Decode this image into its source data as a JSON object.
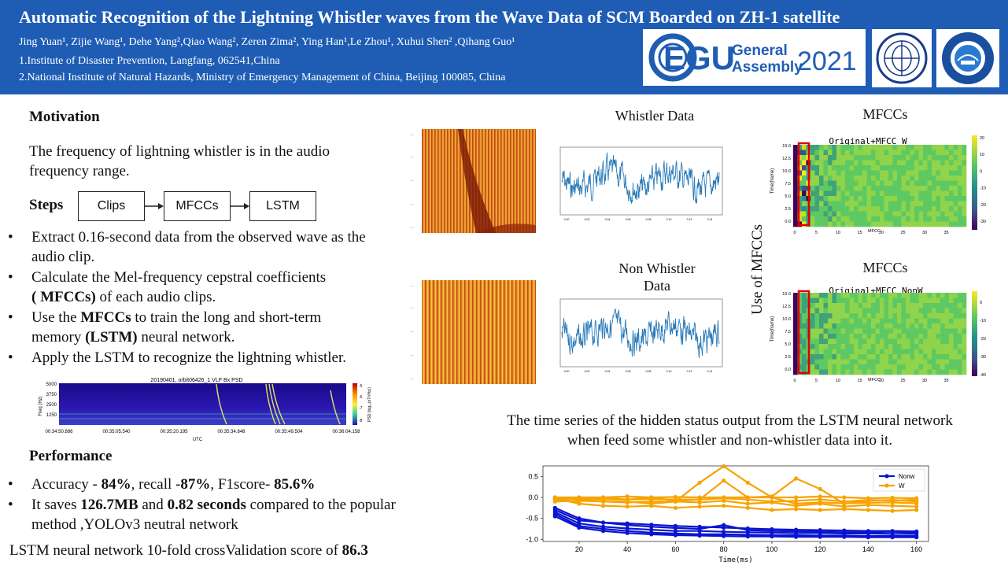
{
  "header": {
    "title": "Automatic Recognition of the Lightning Whistler waves from the Wave Data of SCM Boarded on ZH-1 satellite",
    "authors": "Jing Yuan¹, Zijie Wang¹, Dehe Yang²,Qiao Wang², Zeren Zima², Ying Han¹,Le Zhou¹, Xuhui Shen² ,Qihang Guo¹",
    "affiliation1": "1.Institute of Disaster Prevention, Langfang, 062541,China",
    "affiliation2": "2.National Institute of Natural Hazards, Ministry of Emergency Management of China, Beijing 100085, China",
    "egu_mark": "EGU",
    "egu_general": "General",
    "egu_assembly": "Assembly",
    "egu_year": "2021"
  },
  "motivation": {
    "heading": "Motivation",
    "text_line1": "The frequency of lightning whistler is in the audio",
    "text_line2": "frequency range."
  },
  "steps": {
    "heading": "Steps",
    "flow": [
      "Clips",
      "MFCCs",
      "LSTM"
    ],
    "bullets": [
      {
        "l1": "Extract 0.16-second data from the observed wave as the",
        "l2": "audio clip."
      },
      {
        "l1": "Calculate the Mel-frequency cepstral coefficients",
        "l2b": "( MFCCs)",
        "l2": " of each audio clips."
      },
      {
        "l1a": "Use the ",
        "l1b": "MFCCs",
        "l1c": " to train the long and short-term",
        "l2a": "memory ",
        "l2b": "(LSTM)",
        "l2c": " neural network."
      },
      {
        "l1": "Apply the LSTM to recognize the lightning whistler."
      }
    ]
  },
  "spectrogram": {
    "title": "20190401, orbit06426_1 VLF Bx PSD",
    "ylabel": "Freq (Hz)",
    "yticks": [
      "5000",
      "3750",
      "2500",
      "1250"
    ],
    "xlabel": "UTC",
    "xticks": [
      "00:34:50.886",
      "00:35:05.540",
      "00:35:20.195",
      "00:35:34.848",
      "00:35:49.504",
      "00:36:04.158"
    ],
    "cbar_label": "PSD (log₁₀(nT²/Hz))",
    "cbar_ticks": [
      "-5",
      "-6",
      "-7",
      "-8"
    ]
  },
  "performance": {
    "heading": "Performance",
    "b1_a": "Accuracy - ",
    "b1_b": "84%",
    "b1_c": ", recall -",
    "b1_d": "87%",
    "b1_e": ", F1score- ",
    "b1_f": "85.6%",
    "b2_a": "It saves ",
    "b2_b": "126.7MB",
    "b2_c": " and ",
    "b2_d": "0.82 seconds",
    "b2_e": " compared to the popular",
    "b2_l2": "method ,YOLOv3 neutral network",
    "cv_a": "LSTM  neural network 10-fold crossValidation score of ",
    "cv_b": "86.3"
  },
  "right": {
    "whistler_label": "Whistler Data",
    "mfcc_label1": "MFCCs",
    "nonwhistler_label_l1": "Non Whistler",
    "nonwhistler_label_l2": "Data",
    "mfcc_label2": "MFCCs",
    "use_of_mfccs": "Use of MFCCs",
    "heat1_title": "Original+MFCC_W",
    "heat2_title": "Original+MFCC_NonW",
    "heat_ylabel": "Time(frame)",
    "heat_xlabel": "MFCC",
    "heat_yticks": [
      "15.0",
      "12.5",
      "10.0",
      "7.5",
      "5.0",
      "2.5",
      "0.0"
    ],
    "heat_xticks": [
      "0",
      "5",
      "10",
      "15",
      "20",
      "25",
      "30",
      "35"
    ],
    "cb1_ticks": [
      "20",
      "10",
      "0",
      "-10",
      "-20",
      "-30"
    ],
    "cb2_ticks": [
      "0",
      "-10",
      "-20",
      "-30",
      "-40"
    ],
    "wave_xticks": [
      "0.00",
      "0.02",
      "0.04",
      "0.06",
      "0.08",
      "0.10",
      "0.12",
      "0.14"
    ],
    "caption_l1": "The time series  of the hidden status  output from the LSTM  neural network",
    "caption_l2": "when feed some whistler and non-whistler data into it."
  },
  "chart_data": {
    "type": "line",
    "xlabel": "Time(ms)",
    "ylabel": "",
    "x": [
      10,
      20,
      30,
      40,
      50,
      60,
      70,
      80,
      90,
      100,
      110,
      120,
      130,
      140,
      150,
      160
    ],
    "xticks": [
      20,
      40,
      60,
      80,
      100,
      120,
      140,
      160
    ],
    "yticks": [
      0.5,
      0.0,
      -0.5,
      -1.0
    ],
    "ylim": [
      -1.05,
      0.75
    ],
    "xlim": [
      5,
      165
    ],
    "legend": "top-right",
    "colors": {
      "Nonw": "#0a14d0",
      "W": "#f7a300"
    },
    "series": [
      {
        "name": "Nonw",
        "values": [
          -0.3,
          -0.55,
          -0.6,
          -0.62,
          -0.65,
          -0.68,
          -0.7,
          -0.72,
          -0.74,
          -0.76,
          -0.77,
          -0.78,
          -0.79,
          -0.8,
          -0.8,
          -0.81
        ]
      },
      {
        "name": "Nonw",
        "values": [
          -0.35,
          -0.62,
          -0.7,
          -0.74,
          -0.77,
          -0.8,
          -0.8,
          -0.82,
          -0.83,
          -0.84,
          -0.85,
          -0.85,
          -0.86,
          -0.86,
          -0.87,
          -0.87
        ]
      },
      {
        "name": "Nonw",
        "values": [
          -0.4,
          -0.68,
          -0.75,
          -0.8,
          -0.84,
          -0.86,
          -0.88,
          -0.88,
          -0.89,
          -0.9,
          -0.9,
          -0.91,
          -0.91,
          -0.92,
          -0.92,
          -0.92
        ]
      },
      {
        "name": "Nonw",
        "values": [
          -0.45,
          -0.72,
          -0.8,
          -0.85,
          -0.88,
          -0.9,
          -0.91,
          -0.92,
          -0.93,
          -0.93,
          -0.94,
          -0.94,
          -0.94,
          -0.95,
          -0.95,
          -0.95
        ]
      },
      {
        "name": "Nonw",
        "values": [
          -0.25,
          -0.5,
          -0.6,
          -0.66,
          -0.7,
          -0.73,
          -0.75,
          -0.66,
          -0.78,
          -0.8,
          -0.81,
          -0.82,
          -0.83,
          -0.83,
          -0.82,
          -0.84
        ]
      },
      {
        "name": "W",
        "values": [
          0.0,
          0.0,
          0.0,
          0.02,
          0.0,
          0.01,
          0.0,
          0.0,
          0.0,
          0.0,
          0.0,
          0.02,
          0.0,
          -0.02,
          -0.01,
          -0.02
        ]
      },
      {
        "name": "W",
        "values": [
          -0.05,
          -0.02,
          -0.05,
          -0.05,
          -0.04,
          -0.05,
          -0.05,
          0.4,
          0.0,
          0.02,
          0.45,
          0.2,
          -0.15,
          -0.08,
          -0.06,
          -0.1
        ]
      },
      {
        "name": "W",
        "values": [
          -0.1,
          -0.08,
          -0.1,
          -0.12,
          -0.1,
          -0.1,
          0.35,
          0.74,
          0.35,
          0.0,
          -0.15,
          -0.12,
          -0.14,
          -0.13,
          -0.12,
          -0.14
        ]
      },
      {
        "name": "W",
        "values": [
          -0.02,
          -0.15,
          -0.2,
          -0.22,
          -0.2,
          -0.25,
          -0.22,
          -0.2,
          -0.25,
          -0.3,
          -0.28,
          -0.3,
          -0.28,
          -0.3,
          -0.32,
          -0.3
        ]
      },
      {
        "name": "W",
        "values": [
          0.0,
          -0.05,
          -0.1,
          -0.1,
          -0.15,
          -0.1,
          -0.12,
          -0.08,
          -0.15,
          -0.12,
          -0.2,
          -0.15,
          -0.22,
          -0.18,
          -0.2,
          -0.22
        ]
      },
      {
        "name": "W",
        "values": [
          -0.05,
          -0.1,
          0.0,
          -0.05,
          0.0,
          -0.08,
          -0.05,
          -0.02,
          -0.05,
          -0.1,
          -0.08,
          -0.05,
          -0.1,
          -0.06,
          -0.08,
          -0.05
        ]
      }
    ]
  }
}
